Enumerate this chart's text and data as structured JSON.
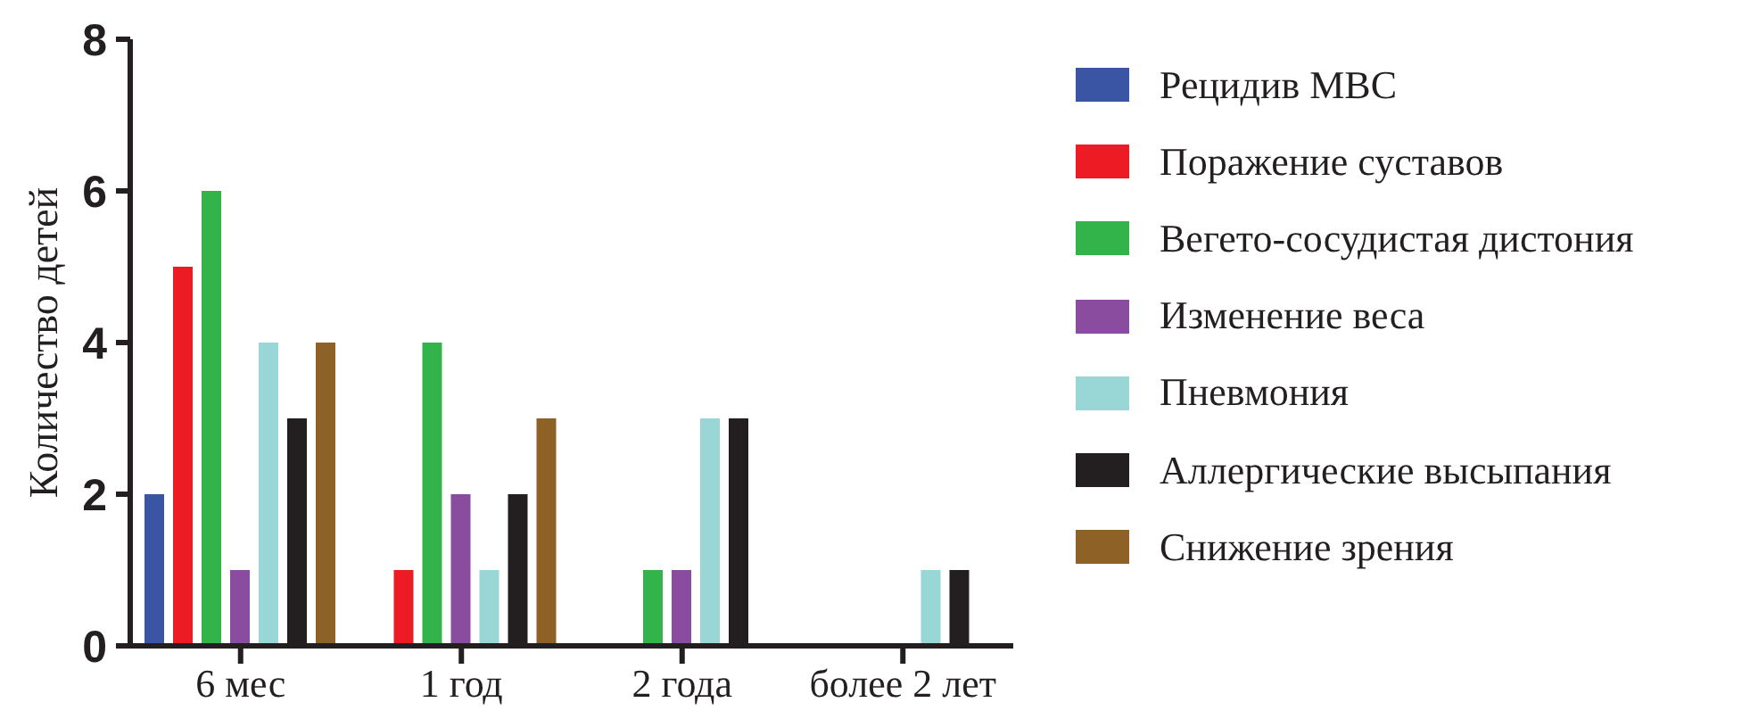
{
  "chart_data": {
    "type": "bar",
    "ylabel": "Количество детей",
    "categories": [
      "6 мес",
      "1 год",
      "2 года",
      "более 2 лет"
    ],
    "series": [
      {
        "name": "Рецидив МВС",
        "color": "#3a55a4",
        "values": [
          2,
          0,
          0,
          0
        ]
      },
      {
        "name": "Поражение суставов",
        "color": "#ed1c24",
        "values": [
          5,
          1,
          0,
          0
        ]
      },
      {
        "name": "Вегето-сосудистая дистония",
        "color": "#33b44a",
        "values": [
          6,
          4,
          1,
          0
        ]
      },
      {
        "name": "Изменение веса",
        "color": "#8a4c9e",
        "values": [
          1,
          2,
          1,
          0
        ]
      },
      {
        "name": "Пневмония",
        "color": "#98d7d6",
        "values": [
          4,
          1,
          3,
          1
        ]
      },
      {
        "name": "Аллергические высыпания",
        "color": "#231f20",
        "values": [
          3,
          2,
          3,
          1
        ]
      },
      {
        "name": "Снижение зрения",
        "color": "#8e6127",
        "values": [
          4,
          3,
          0,
          0
        ]
      }
    ],
    "ylim": [
      0,
      8
    ],
    "yticks": [
      0,
      2,
      4,
      6,
      8
    ],
    "legend": "right"
  }
}
